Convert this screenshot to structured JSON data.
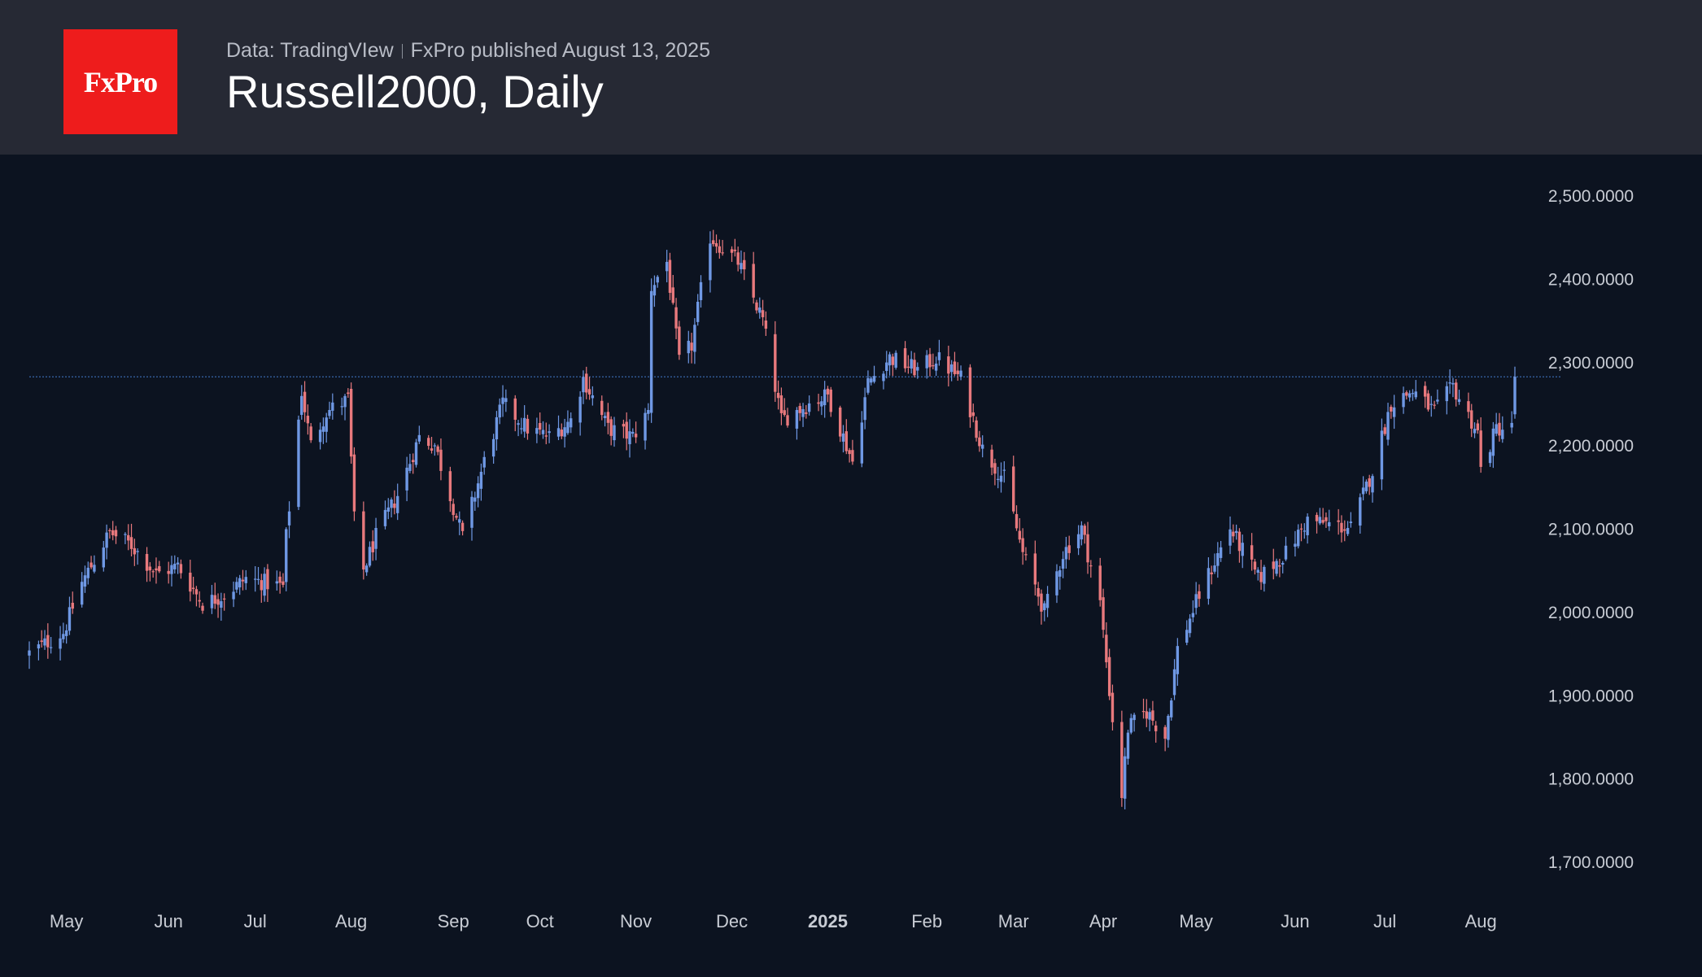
{
  "header": {
    "logo_text": "FxPro",
    "source": "Data: TradingVIew",
    "published": "FxPro published August 13, 2025",
    "title": "Russell2000, Daily"
  },
  "colors": {
    "background": "#0c1320",
    "header_bg": "#262934",
    "logo_bg": "#ee1c1c",
    "up": "#6f98e4",
    "down": "#e8797d",
    "price_line": "#3d6fb8",
    "axis_text": "#c8ccd4"
  },
  "chart_data": {
    "type": "candlestick",
    "title": "Russell2000, Daily",
    "ylim": [
      1700,
      2500
    ],
    "y_ticks": [
      2500,
      2400,
      2300,
      2200,
      2100,
      2000,
      1900,
      1800,
      1700
    ],
    "y_tick_labels": [
      "2,500.0000",
      "2,400.0000",
      "2,300.0000",
      "2,200.0000",
      "2,100.0000",
      "2,000.0000",
      "1,900.0000",
      "1,800.0000",
      "1,700.0000"
    ],
    "x_ticks": [
      {
        "label": "May",
        "date": "2024-05-01",
        "bold": false
      },
      {
        "label": "Jun",
        "date": "2024-06-03",
        "bold": false
      },
      {
        "label": "Jul",
        "date": "2024-07-01",
        "bold": false
      },
      {
        "label": "Aug",
        "date": "2024-08-01",
        "bold": false
      },
      {
        "label": "Sep",
        "date": "2024-09-03",
        "bold": false
      },
      {
        "label": "Oct",
        "date": "2024-10-01",
        "bold": false
      },
      {
        "label": "Nov",
        "date": "2024-11-01",
        "bold": false
      },
      {
        "label": "Dec",
        "date": "2024-12-02",
        "bold": false
      },
      {
        "label": "2025",
        "date": "2025-01-02",
        "bold": true
      },
      {
        "label": "Feb",
        "date": "2025-02-03",
        "bold": false
      },
      {
        "label": "Mar",
        "date": "2025-03-03",
        "bold": false
      },
      {
        "label": "Apr",
        "date": "2025-04-01",
        "bold": false
      },
      {
        "label": "May",
        "date": "2025-05-01",
        "bold": false
      },
      {
        "label": "Jun",
        "date": "2025-06-02",
        "bold": false
      },
      {
        "label": "Jul",
        "date": "2025-07-01",
        "bold": false
      },
      {
        "label": "Aug",
        "date": "2025-08-01",
        "bold": false
      }
    ],
    "last_price": 2282,
    "first_date": "2024-04-19",
    "last_date": "2025-08-12",
    "close_anchors": [
      [
        "2024-04-19",
        1950
      ],
      [
        "2024-04-30",
        1975
      ],
      [
        "2024-05-06",
        2035
      ],
      [
        "2024-05-15",
        2095
      ],
      [
        "2024-05-22",
        2080
      ],
      [
        "2024-05-30",
        2045
      ],
      [
        "2024-06-06",
        2055
      ],
      [
        "2024-06-14",
        2010
      ],
      [
        "2024-06-21",
        2020
      ],
      [
        "2024-06-28",
        2040
      ],
      [
        "2024-07-10",
        2030
      ],
      [
        "2024-07-11",
        2090
      ],
      [
        "2024-07-16",
        2265
      ],
      [
        "2024-07-19",
        2200
      ],
      [
        "2024-07-24",
        2240
      ],
      [
        "2024-07-31",
        2255
      ],
      [
        "2024-08-02",
        2110
      ],
      [
        "2024-08-05",
        2050
      ],
      [
        "2024-08-09",
        2090
      ],
      [
        "2024-08-16",
        2140
      ],
      [
        "2024-08-23",
        2210
      ],
      [
        "2024-08-28",
        2200
      ],
      [
        "2024-09-06",
        2090
      ],
      [
        "2024-09-13",
        2180
      ],
      [
        "2024-09-19",
        2250
      ],
      [
        "2024-09-27",
        2220
      ],
      [
        "2024-10-04",
        2210
      ],
      [
        "2024-10-11",
        2230
      ],
      [
        "2024-10-15",
        2280
      ],
      [
        "2024-10-23",
        2220
      ],
      [
        "2024-10-31",
        2210
      ],
      [
        "2024-11-05",
        2240
      ],
      [
        "2024-11-06",
        2390
      ],
      [
        "2024-11-11",
        2420
      ],
      [
        "2024-11-15",
        2300
      ],
      [
        "2024-11-19",
        2320
      ],
      [
        "2024-11-25",
        2450
      ],
      [
        "2024-12-04",
        2420
      ],
      [
        "2024-12-12",
        2350
      ],
      [
        "2024-12-18",
        2230
      ],
      [
        "2024-12-27",
        2250
      ],
      [
        "2025-01-02",
        2260
      ],
      [
        "2025-01-10",
        2180
      ],
      [
        "2025-01-15",
        2275
      ],
      [
        "2025-01-22",
        2305
      ],
      [
        "2025-01-31",
        2290
      ],
      [
        "2025-02-06",
        2305
      ],
      [
        "2025-02-14",
        2280
      ],
      [
        "2025-02-21",
        2195
      ],
      [
        "2025-02-28",
        2160
      ],
      [
        "2025-03-06",
        2070
      ],
      [
        "2025-03-13",
        2000
      ],
      [
        "2025-03-19",
        2070
      ],
      [
        "2025-03-25",
        2100
      ],
      [
        "2025-03-31",
        2010
      ],
      [
        "2025-04-04",
        1870
      ],
      [
        "2025-04-07",
        1780
      ],
      [
        "2025-04-09",
        1860
      ],
      [
        "2025-04-15",
        1880
      ],
      [
        "2025-04-21",
        1850
      ],
      [
        "2025-04-25",
        1955
      ],
      [
        "2025-05-02",
        2020
      ],
      [
        "2025-05-12",
        2100
      ],
      [
        "2025-05-21",
        2040
      ],
      [
        "2025-05-30",
        2070
      ],
      [
        "2025-06-06",
        2110
      ],
      [
        "2025-06-13",
        2105
      ],
      [
        "2025-06-20",
        2100
      ],
      [
        "2025-06-27",
        2170
      ],
      [
        "2025-07-03",
        2250
      ],
      [
        "2025-07-10",
        2265
      ],
      [
        "2025-07-17",
        2240
      ],
      [
        "2025-07-23",
        2270
      ],
      [
        "2025-07-31",
        2215
      ],
      [
        "2025-08-01",
        2170
      ],
      [
        "2025-08-06",
        2220
      ],
      [
        "2025-08-11",
        2220
      ],
      [
        "2025-08-12",
        2282
      ]
    ]
  }
}
